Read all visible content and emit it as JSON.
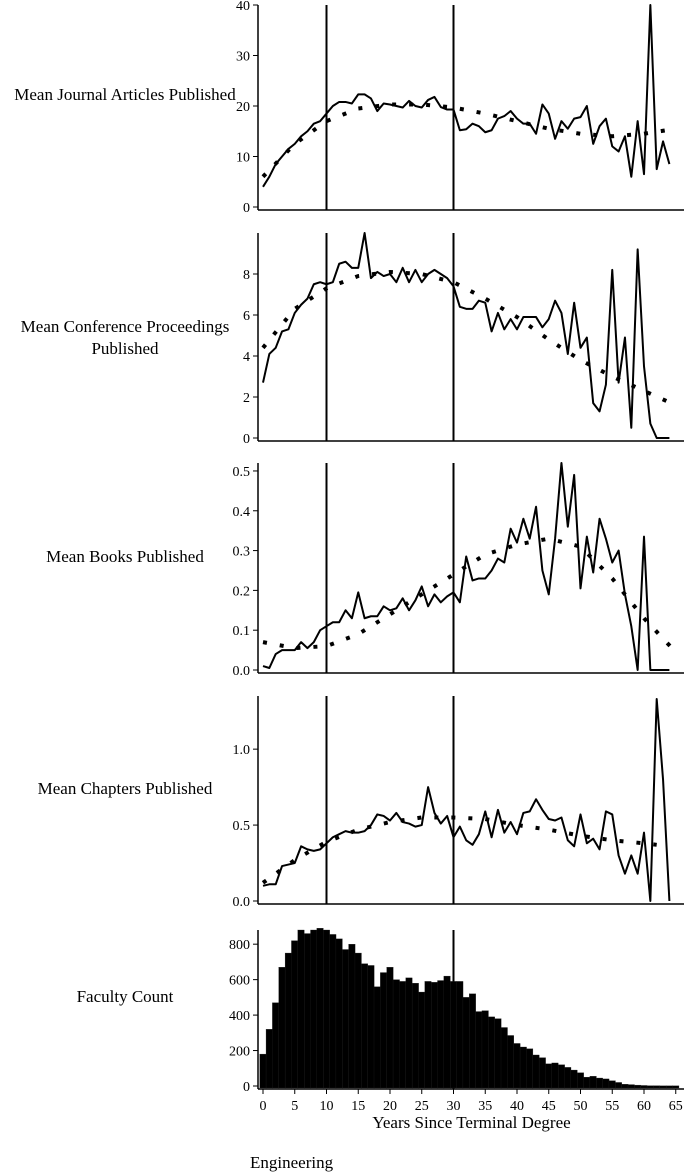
{
  "caption": "Engineering",
  "chart_data": [
    {
      "type": "line",
      "ylabel": "Mean Journal Articles Published",
      "ylim": [
        0,
        40
      ],
      "yticks": [
        0,
        10,
        20,
        30,
        40
      ],
      "x_start": 0,
      "values": [
        4,
        6,
        8.5,
        10,
        11.5,
        12.5,
        14,
        15,
        16.5,
        17,
        18.5,
        20,
        20.8,
        20.8,
        20.5,
        22.3,
        22.3,
        21.5,
        19,
        20.5,
        20.3,
        20,
        19.7,
        21,
        20,
        19.7,
        21.2,
        21.8,
        19.8,
        19.3,
        19.3,
        15.2,
        15.4,
        16.5,
        16,
        14.8,
        15.2,
        17.5,
        18,
        19,
        17.5,
        16.5,
        16.5,
        14.5,
        20.3,
        18.5,
        13.5,
        17,
        15.5,
        17.5,
        17.8,
        20,
        12.5,
        16,
        17.5,
        12,
        11,
        14,
        6,
        17,
        6.5,
        40,
        7.5,
        13,
        8.5
      ],
      "trend": {
        "x": [
          0,
          5,
          10,
          15,
          20,
          25,
          30,
          35,
          40,
          45,
          50,
          55,
          60,
          65
        ],
        "y": [
          6,
          12.5,
          17,
          19.5,
          20.3,
          20.3,
          19.7,
          18.5,
          17,
          15.5,
          14.5,
          14,
          14.5,
          15.5
        ]
      },
      "vlines": [
        10,
        30
      ]
    },
    {
      "type": "line",
      "ylabel": "Mean Conference Proceedings Published",
      "ylim": [
        0,
        10
      ],
      "yticks": [
        0,
        2,
        4,
        6,
        8
      ],
      "x_start": 0,
      "values": [
        2.7,
        4.1,
        4.4,
        5.2,
        5.3,
        6.1,
        6.5,
        6.8,
        7.5,
        7.6,
        7.5,
        7.6,
        8.5,
        8.6,
        8.3,
        8.3,
        10,
        7.8,
        8.1,
        7.9,
        8,
        7.6,
        8.3,
        7.6,
        8.2,
        7.6,
        8,
        8.2,
        8,
        7.8,
        7.4,
        6.4,
        6.3,
        6.3,
        6.7,
        6.6,
        5.2,
        6.1,
        5.3,
        5.8,
        5.3,
        5.9,
        5.9,
        5.9,
        5.4,
        5.8,
        6.7,
        6.1,
        4.1,
        6.6,
        4.4,
        4.9,
        1.7,
        1.3,
        2.6,
        8.2,
        2.7,
        4.9,
        0.5,
        9.2,
        3.5,
        0.7,
        0,
        0,
        0
      ],
      "trend": {
        "x": [
          0,
          5,
          10,
          15,
          20,
          25,
          30,
          35,
          40,
          45,
          50,
          55,
          60,
          65
        ],
        "y": [
          4.4,
          6.3,
          7.3,
          7.9,
          8.1,
          8.0,
          7.6,
          6.8,
          5.9,
          4.8,
          3.8,
          3.0,
          2.3,
          1.6
        ]
      },
      "vlines": [
        10,
        30
      ]
    },
    {
      "type": "line",
      "ylabel": "Mean Books Published",
      "ylim": [
        0,
        0.52
      ],
      "yticks": [
        "0.0",
        "0.1",
        "0.2",
        "0.3",
        "0.4",
        "0.5"
      ],
      "x_start": 0,
      "values": [
        0.01,
        0.005,
        0.04,
        0.05,
        0.05,
        0.05,
        0.07,
        0.055,
        0.07,
        0.1,
        0.11,
        0.12,
        0.12,
        0.15,
        0.13,
        0.195,
        0.13,
        0.135,
        0.135,
        0.16,
        0.15,
        0.155,
        0.18,
        0.15,
        0.175,
        0.21,
        0.16,
        0.19,
        0.17,
        0.185,
        0.195,
        0.17,
        0.285,
        0.225,
        0.23,
        0.23,
        0.25,
        0.28,
        0.27,
        0.355,
        0.32,
        0.38,
        0.33,
        0.41,
        0.25,
        0.19,
        0.33,
        0.52,
        0.36,
        0.49,
        0.205,
        0.335,
        0.245,
        0.38,
        0.33,
        0.27,
        0.3,
        0.19,
        0.11,
        0,
        0.335,
        0,
        0,
        0,
        0
      ],
      "trend": {
        "x": [
          0,
          5,
          10,
          15,
          20,
          25,
          30,
          35,
          40,
          45,
          50,
          55,
          60,
          65
        ],
        "y": [
          0.07,
          0.055,
          0.06,
          0.09,
          0.14,
          0.19,
          0.24,
          0.29,
          0.315,
          0.33,
          0.31,
          0.23,
          0.13,
          0.045
        ]
      },
      "vlines": [
        10,
        30
      ]
    },
    {
      "type": "line",
      "ylabel": "Mean Chapters Published",
      "ylim": [
        0,
        1.35
      ],
      "yticks": [
        "0.0",
        "0.5",
        "1.0"
      ],
      "x_start": 0,
      "values": [
        0.1,
        0.11,
        0.11,
        0.23,
        0.24,
        0.25,
        0.36,
        0.34,
        0.33,
        0.34,
        0.38,
        0.42,
        0.44,
        0.46,
        0.45,
        0.45,
        0.46,
        0.5,
        0.57,
        0.56,
        0.53,
        0.58,
        0.52,
        0.51,
        0.49,
        0.5,
        0.75,
        0.58,
        0.51,
        0.56,
        0.42,
        0.49,
        0.4,
        0.37,
        0.44,
        0.59,
        0.42,
        0.6,
        0.45,
        0.52,
        0.44,
        0.58,
        0.59,
        0.67,
        0.6,
        0.54,
        0.53,
        0.55,
        0.4,
        0.36,
        0.57,
        0.38,
        0.41,
        0.34,
        0.59,
        0.57,
        0.3,
        0.18,
        0.3,
        0.18,
        0.45,
        0,
        1.33,
        0.8,
        0
      ],
      "trend": {
        "x": [
          0,
          5,
          10,
          15,
          20,
          25,
          30,
          35,
          40,
          45,
          50,
          55,
          60,
          62
        ],
        "y": [
          0.12,
          0.27,
          0.39,
          0.47,
          0.52,
          0.55,
          0.55,
          0.54,
          0.5,
          0.47,
          0.43,
          0.4,
          0.38,
          0.37
        ]
      },
      "vlines": [
        10,
        30
      ]
    },
    {
      "type": "bar",
      "ylabel": "Faculty Count",
      "xlabel": "Years Since Terminal Degree",
      "ylim": [
        0,
        880
      ],
      "yticks": [
        0,
        200,
        400,
        600,
        800
      ],
      "xticks": [
        0,
        5,
        10,
        15,
        20,
        25,
        30,
        35,
        40,
        45,
        50,
        55,
        60,
        65
      ],
      "x_start": 0,
      "values": [
        180,
        320,
        470,
        670,
        750,
        820,
        880,
        860,
        880,
        890,
        880,
        855,
        830,
        770,
        800,
        750,
        690,
        680,
        560,
        640,
        670,
        600,
        590,
        610,
        580,
        530,
        590,
        585,
        595,
        620,
        590,
        590,
        500,
        520,
        420,
        425,
        390,
        380,
        330,
        285,
        240,
        220,
        210,
        175,
        160,
        125,
        130,
        120,
        105,
        90,
        75,
        50,
        55,
        45,
        40,
        30,
        20,
        10,
        8,
        5,
        3,
        2,
        2,
        1,
        1,
        1
      ],
      "vlines": [
        30
      ]
    }
  ]
}
